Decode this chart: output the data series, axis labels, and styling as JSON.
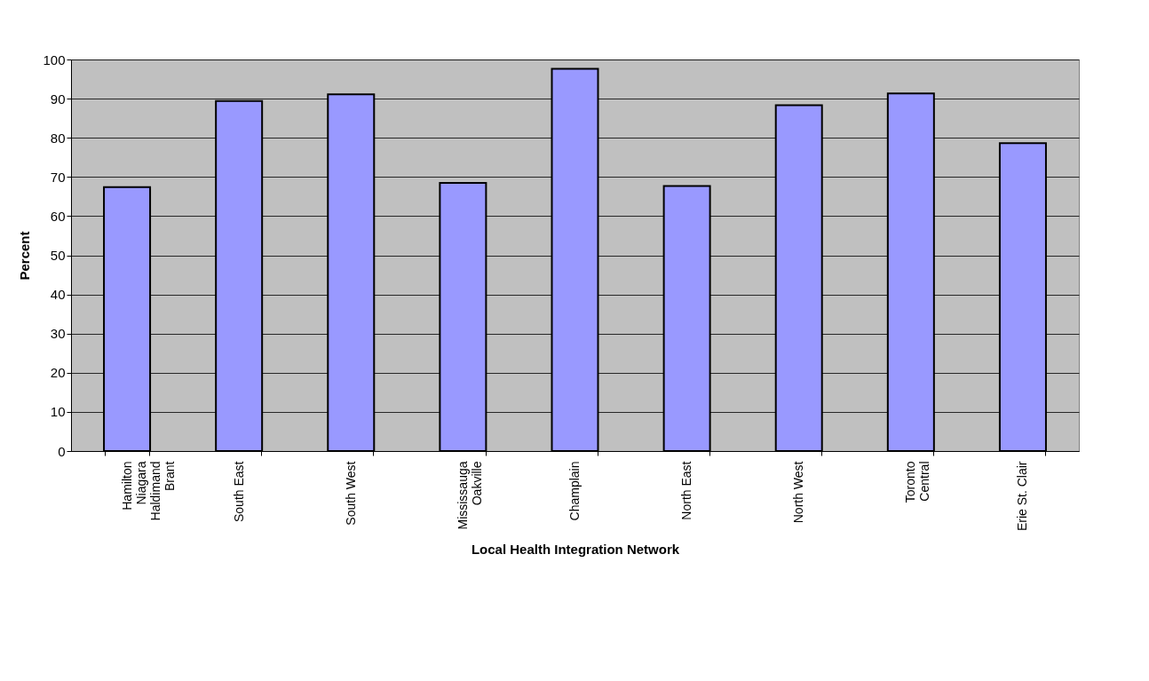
{
  "chart_data": {
    "type": "bar",
    "xlabel": "Local Health Integration Network",
    "ylabel": "Percent",
    "categories": [
      "Hamilton\nNiagara\nHaldimand\nBrant",
      "South East",
      "South West",
      "Mississauga\nOakville",
      "Champlain",
      "North East",
      "North West",
      "Toronto\nCentral",
      "Erie St. Clair"
    ],
    "values": [
      67.4,
      89.4,
      91.1,
      68.5,
      97.6,
      67.7,
      88.3,
      91.3,
      78.6
    ],
    "color": "#9999ff",
    "ylim": [
      0,
      100
    ],
    "yticks": [
      0,
      10,
      20,
      30,
      40,
      50,
      60,
      70,
      80,
      90,
      100
    ],
    "grid": "y"
  }
}
